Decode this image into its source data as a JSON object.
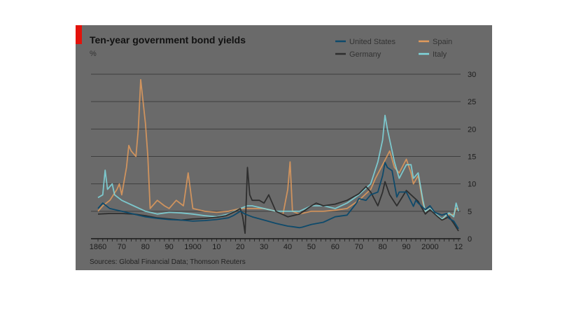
{
  "chart_data": {
    "type": "line",
    "title": "Ten-year government bond yields",
    "unit": "%",
    "source": "Sources: Global Financial Data; Thomson Reuters",
    "xlim": [
      1860,
      2012
    ],
    "ylim": [
      0,
      30
    ],
    "x_ticks": [
      {
        "x": 1860,
        "label": "1860"
      },
      {
        "x": 1870,
        "label": "70"
      },
      {
        "x": 1880,
        "label": "80"
      },
      {
        "x": 1890,
        "label": "90"
      },
      {
        "x": 1900,
        "label": "1900"
      },
      {
        "x": 1910,
        "label": "10"
      },
      {
        "x": 1920,
        "label": "20"
      },
      {
        "x": 1930,
        "label": "30"
      },
      {
        "x": 1940,
        "label": "40"
      },
      {
        "x": 1950,
        "label": "50"
      },
      {
        "x": 1960,
        "label": "60"
      },
      {
        "x": 1970,
        "label": "70"
      },
      {
        "x": 1980,
        "label": "80"
      },
      {
        "x": 1990,
        "label": "90"
      },
      {
        "x": 2000,
        "label": "2000"
      },
      {
        "x": 2012,
        "label": "12"
      }
    ],
    "y_ticks": [
      {
        "y": 0,
        "label": "0"
      },
      {
        "y": 5,
        "label": "5"
      },
      {
        "y": 10,
        "label": "10"
      },
      {
        "y": 15,
        "label": "15"
      },
      {
        "y": 20,
        "label": "20"
      },
      {
        "y": 25,
        "label": "25"
      },
      {
        "y": 30,
        "label": "30"
      }
    ],
    "grid": true,
    "legend_position": "top-right",
    "series": [
      {
        "name": "United States",
        "color": "#0e4a6b",
        "x": [
          1860,
          1862,
          1865,
          1868,
          1870,
          1875,
          1880,
          1885,
          1890,
          1895,
          1900,
          1905,
          1910,
          1915,
          1917,
          1920,
          1922,
          1925,
          1930,
          1935,
          1940,
          1942,
          1945,
          1946,
          1950,
          1955,
          1960,
          1965,
          1969,
          1970,
          1973,
          1975,
          1978,
          1980,
          1981,
          1982,
          1984,
          1986,
          1987,
          1990,
          1993,
          1994,
          1995,
          1998,
          2000,
          2002,
          2005,
          2007,
          2008,
          2010,
          2012
        ],
        "y": [
          5.5,
          6.5,
          5.5,
          5.2,
          5.0,
          4.5,
          4.0,
          3.7,
          3.5,
          3.4,
          3.2,
          3.3,
          3.5,
          3.8,
          4.2,
          5.0,
          4.5,
          4.0,
          3.4,
          2.8,
          2.3,
          2.2,
          2.0,
          2.1,
          2.6,
          3.0,
          4.0,
          4.3,
          6.5,
          7.3,
          7.0,
          8.0,
          8.5,
          11.5,
          13.9,
          13.0,
          12.4,
          7.6,
          8.5,
          8.5,
          5.9,
          7.0,
          6.5,
          5.3,
          6.0,
          4.8,
          4.3,
          4.6,
          3.7,
          3.2,
          1.8
        ]
      },
      {
        "name": "Germany",
        "color": "#2e2e2e",
        "x": [
          1860,
          1865,
          1870,
          1875,
          1880,
          1885,
          1890,
          1895,
          1900,
          1905,
          1910,
          1914,
          1918,
          1920,
          1921,
          1922,
          1923,
          1924,
          1925,
          1928,
          1930,
          1932,
          1935,
          1940,
          1945,
          1950,
          1952,
          1955,
          1960,
          1965,
          1970,
          1973,
          1975,
          1978,
          1980,
          1981,
          1983,
          1986,
          1990,
          1992,
          1995,
          1998,
          2000,
          2003,
          2005,
          2008,
          2010,
          2012
        ],
        "y": [
          4.5,
          4.6,
          4.6,
          4.5,
          4.2,
          3.8,
          3.6,
          3.4,
          3.6,
          3.7,
          3.9,
          4.2,
          5.0,
          5.5,
          4.0,
          1.0,
          13.0,
          8.0,
          7.0,
          7.0,
          6.5,
          8.0,
          5.0,
          4.0,
          4.5,
          6.0,
          6.5,
          6.0,
          6.3,
          7.0,
          8.2,
          9.5,
          8.5,
          6.0,
          8.5,
          10.4,
          8.0,
          6.0,
          8.8,
          8.0,
          6.8,
          4.5,
          5.3,
          4.1,
          3.4,
          4.0,
          2.8,
          1.4
        ]
      },
      {
        "name": "Spain",
        "color": "#e09a5c",
        "x": [
          1860,
          1862,
          1865,
          1868,
          1869,
          1870,
          1872,
          1873,
          1874,
          1876,
          1877,
          1878,
          1879,
          1880,
          1881,
          1882,
          1884,
          1885,
          1888,
          1890,
          1893,
          1896,
          1898,
          1900,
          1905,
          1910,
          1915,
          1920,
          1925,
          1930,
          1935,
          1938,
          1940,
          1941,
          1942,
          1945,
          1950,
          1955,
          1960,
          1965,
          1970,
          1975,
          1977,
          1980,
          1983,
          1985,
          1987,
          1990,
          1992,
          1993,
          1995,
          1997,
          1998,
          2000,
          2003,
          2005,
          2007,
          2008,
          2010,
          2011,
          2012
        ],
        "y": [
          5.0,
          6.0,
          7.0,
          9.0,
          10.0,
          8.0,
          13.0,
          17.0,
          16.0,
          15.0,
          20.0,
          29.0,
          25.0,
          21.0,
          15.0,
          5.5,
          6.5,
          7.0,
          6.0,
          5.5,
          7.0,
          6.0,
          12.0,
          5.5,
          5.0,
          4.8,
          5.0,
          5.5,
          5.5,
          5.5,
          5.0,
          4.5,
          9.0,
          14.0,
          5.0,
          4.5,
          5.0,
          5.0,
          5.2,
          5.5,
          7.0,
          9.0,
          11.0,
          13.5,
          16.0,
          13.0,
          12.0,
          14.5,
          12.0,
          10.0,
          11.5,
          6.5,
          5.0,
          5.5,
          4.1,
          3.4,
          4.4,
          4.4,
          4.4,
          5.5,
          5.5
        ]
      },
      {
        "name": "Italy",
        "color": "#7fd7dd",
        "x": [
          1860,
          1862,
          1863,
          1864,
          1866,
          1867,
          1870,
          1875,
          1880,
          1885,
          1890,
          1895,
          1900,
          1905,
          1910,
          1915,
          1920,
          1923,
          1925,
          1930,
          1935,
          1940,
          1945,
          1950,
          1955,
          1960,
          1965,
          1970,
          1975,
          1978,
          1980,
          1981,
          1982,
          1985,
          1987,
          1990,
          1992,
          1993,
          1995,
          1997,
          1998,
          2000,
          2003,
          2005,
          2008,
          2010,
          2011,
          2012
        ],
        "y": [
          7.5,
          8.0,
          12.5,
          9.0,
          10.0,
          8.0,
          7.0,
          6.0,
          5.0,
          4.5,
          4.8,
          4.7,
          4.5,
          4.2,
          4.0,
          4.5,
          5.5,
          6.0,
          6.0,
          5.5,
          5.0,
          5.0,
          5.0,
          6.0,
          6.0,
          5.5,
          6.5,
          8.0,
          10.0,
          14.0,
          18.0,
          22.5,
          20.0,
          14.0,
          11.0,
          13.5,
          13.5,
          11.0,
          12.0,
          7.0,
          5.0,
          5.5,
          4.3,
          3.6,
          4.7,
          4.0,
          6.5,
          5.0
        ]
      }
    ]
  }
}
